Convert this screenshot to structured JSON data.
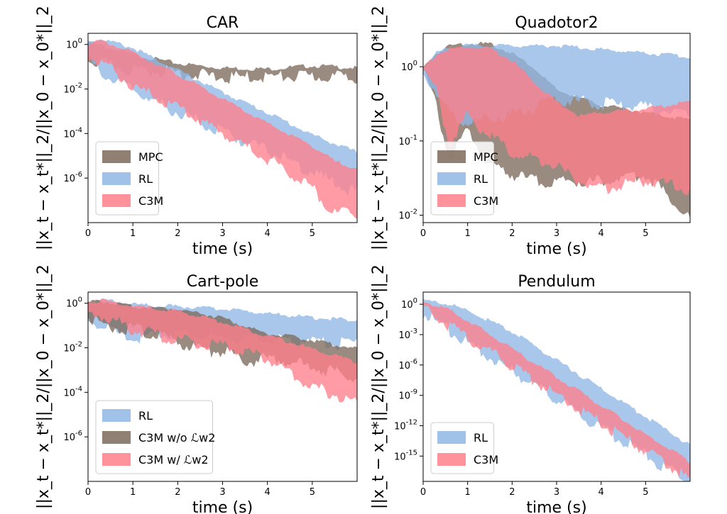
{
  "colors": {
    "MPC": "#7d6a5c",
    "RL": "#8fb7e4",
    "C3M": "#ff7f8a"
  },
  "chart_data": [
    {
      "type": "area",
      "title": "CAR",
      "xlabel": "time (s)",
      "ylabel": "||x_t − x_t*||_2/||x_0 − x_0*||_2",
      "yscale": "log",
      "xlim": [
        0,
        6
      ],
      "ylim_log10": [
        -8,
        0.5
      ],
      "x_ticks": [
        "0",
        "1",
        "2",
        "3",
        "4",
        "5"
      ],
      "y_ticks": [
        {
          "exp": 0,
          "label": "10^0"
        },
        {
          "exp": -2,
          "label": "10^-2"
        },
        {
          "exp": -4,
          "label": "10^-4"
        },
        {
          "exp": -6,
          "label": "10^-6"
        }
      ],
      "legend": {
        "position": "lower left",
        "entries": [
          "MPC",
          "RL",
          "C3M"
        ]
      },
      "series": [
        {
          "name": "MPC",
          "x": [
            0,
            0.3,
            1,
            2,
            3,
            4,
            5,
            6
          ],
          "lower_log10": [
            -0.5,
            -0.7,
            -1.0,
            -1.1,
            -1.35,
            -1.3,
            -1.3,
            -1.3
          ],
          "upper_log10": [
            0.1,
            0.0,
            -0.4,
            -0.8,
            -1.0,
            -1.05,
            -0.9,
            -1.0
          ]
        },
        {
          "name": "RL",
          "x": [
            0,
            0.3,
            1,
            2,
            3,
            4,
            5,
            6
          ],
          "lower_log10": [
            -0.5,
            -1.2,
            -1.9,
            -2.9,
            -3.8,
            -4.6,
            -5.6,
            -6.5
          ],
          "upper_log10": [
            0.2,
            0.3,
            -0.1,
            -1.1,
            -2.1,
            -3.0,
            -4.0,
            -4.8
          ]
        },
        {
          "name": "C3M",
          "x": [
            0,
            0.3,
            1,
            2,
            3,
            4,
            5,
            5.5,
            6
          ],
          "lower_log10": [
            -0.4,
            -0.7,
            -1.7,
            -2.7,
            -3.8,
            -5.0,
            -6.3,
            -7.5,
            -7.4
          ],
          "upper_log10": [
            0.1,
            0.2,
            -0.3,
            -1.3,
            -2.4,
            -3.5,
            -4.5,
            -5.2,
            -5.5
          ]
        }
      ]
    },
    {
      "type": "area",
      "title": "Quadotor2",
      "xlabel": "time (s)",
      "ylabel": "||x_t − x_t*||_2/||x_0 − x_0*||_2",
      "yscale": "log",
      "xlim": [
        0,
        6
      ],
      "ylim_log10": [
        -2.1,
        0.45
      ],
      "x_ticks": [
        "0",
        "1",
        "2",
        "3",
        "4",
        "5"
      ],
      "y_ticks": [
        {
          "exp": 0,
          "label": "10^0"
        },
        {
          "exp": -1,
          "label": "10^-1"
        },
        {
          "exp": -2,
          "label": "10^-2"
        }
      ],
      "legend": {
        "position": "lower left",
        "entries": [
          "MPC",
          "RL",
          "C3M"
        ]
      },
      "series": [
        {
          "name": "MPC",
          "x": [
            0,
            0.3,
            0.6,
            1,
            1.5,
            2,
            2.5,
            3,
            4,
            5,
            6
          ],
          "lower_log10": [
            0,
            -0.5,
            -1.2,
            -0.8,
            -1.3,
            -1.4,
            -1.5,
            -1.5,
            -1.5,
            -1.4,
            -2.0
          ],
          "upper_log10": [
            0,
            0.2,
            0.3,
            0.33,
            0.32,
            0.2,
            0.0,
            -0.3,
            -0.5,
            -0.6,
            -0.7
          ]
        },
        {
          "name": "RL",
          "x": [
            0,
            0.3,
            0.6,
            1,
            2,
            3,
            4,
            5,
            6
          ],
          "lower_log10": [
            0,
            -0.3,
            -0.6,
            -0.7,
            -0.6,
            -0.4,
            -0.45,
            -0.5,
            -0.6
          ],
          "upper_log10": [
            0,
            0.2,
            0.28,
            0.3,
            0.3,
            0.3,
            0.25,
            0.2,
            0.15
          ]
        },
        {
          "name": "C3M",
          "x": [
            0,
            0.3,
            0.6,
            1,
            1.5,
            2,
            2.5,
            3,
            3.5,
            4,
            5,
            6
          ],
          "lower_log10": [
            0,
            -0.3,
            -1.0,
            -0.6,
            -0.9,
            -1.1,
            -1.2,
            -1.3,
            -1.5,
            -1.6,
            -1.5,
            -1.6
          ],
          "upper_log10": [
            0,
            0.18,
            0.25,
            0.28,
            0.25,
            0.1,
            -0.2,
            -0.45,
            -0.65,
            -0.6,
            -0.55,
            -0.45
          ]
        }
      ]
    },
    {
      "type": "area",
      "title": "Cart-pole",
      "xlabel": "time (s)",
      "ylabel": "||x_t − x_t*||_2/||x_0 − x_0*||_2",
      "yscale": "log",
      "xlim": [
        0,
        6
      ],
      "ylim_log10": [
        -8,
        0.5
      ],
      "x_ticks": [
        "0",
        "1",
        "2",
        "3",
        "4",
        "5"
      ],
      "y_ticks": [
        {
          "exp": 0,
          "label": "10^0"
        },
        {
          "exp": -2,
          "label": "10^-2"
        },
        {
          "exp": -4,
          "label": "10^-4"
        },
        {
          "exp": -6,
          "label": "10^-6"
        }
      ],
      "legend": {
        "position": "lower left",
        "entries": [
          "RL",
          "C3M w/o ℒw2",
          "C3M w/ ℒw2"
        ]
      },
      "series": [
        {
          "name": "RL",
          "x": [
            0,
            0.3,
            0.7,
            1,
            2,
            3,
            4,
            5,
            6
          ],
          "lower_log10": [
            -0.7,
            -0.8,
            -1.3,
            -1.4,
            -1.2,
            -1.4,
            -1.4,
            -1.6,
            -1.7
          ],
          "upper_log10": [
            0.1,
            0.2,
            0.1,
            0.0,
            -0.1,
            -0.2,
            -0.4,
            -0.6,
            -0.7
          ]
        },
        {
          "name": "C3M w/o ℒw2",
          "x": [
            0,
            0.3,
            1,
            2,
            2.5,
            3,
            3.5,
            4,
            5,
            6
          ],
          "lower_log10": [
            -0.4,
            -0.9,
            -1.0,
            -1.6,
            -2.0,
            -2.0,
            -2.5,
            -2.3,
            -2.7,
            -3.2
          ],
          "upper_log10": [
            0.1,
            0.15,
            -0.1,
            -0.2,
            -0.4,
            -0.6,
            -1.0,
            -1.3,
            -1.6,
            -2.0
          ]
        },
        {
          "name": "C3M w/ ℒw2",
          "x": [
            0,
            0.3,
            1,
            2,
            3,
            4,
            5,
            6
          ],
          "lower_log10": [
            -0.3,
            -0.4,
            -1.0,
            -1.5,
            -1.8,
            -2.3,
            -3.6,
            -4.3
          ],
          "upper_log10": [
            0.1,
            0.2,
            -0.1,
            -0.3,
            -0.8,
            -1.4,
            -2.0,
            -2.6
          ]
        }
      ]
    },
    {
      "type": "area",
      "title": "Pendulum",
      "xlabel": "time (s)",
      "ylabel": "||x_t − x_t*||_2/||x_0 − x_0*||_2",
      "yscale": "log",
      "xlim": [
        0,
        6
      ],
      "ylim_log10": [
        -17.5,
        1.2
      ],
      "x_ticks": [
        "0",
        "1",
        "2",
        "3",
        "4",
        "5"
      ],
      "y_ticks": [
        {
          "exp": 0,
          "label": "10^0"
        },
        {
          "exp": -3,
          "label": "10^-3"
        },
        {
          "exp": -6,
          "label": "10^-6"
        },
        {
          "exp": -9,
          "label": "10^-9"
        },
        {
          "exp": -12,
          "label": "10^-12"
        },
        {
          "exp": -15,
          "label": "10^-15"
        }
      ],
      "legend": {
        "position": "lower left",
        "entries": [
          "RL",
          "C3M"
        ]
      },
      "series": [
        {
          "name": "RL",
          "x": [
            0,
            0.5,
            1,
            2,
            3,
            4,
            5,
            6
          ],
          "lower_log10": [
            -0.5,
            -2.0,
            -3.5,
            -6.3,
            -9.1,
            -11.9,
            -14.6,
            -17.3
          ],
          "upper_log10": [
            0.5,
            0.2,
            -0.5,
            -2.6,
            -5.4,
            -8.2,
            -11.0,
            -13.8
          ]
        },
        {
          "name": "C3M",
          "x": [
            0,
            0.5,
            1,
            2,
            3,
            4,
            5,
            6
          ],
          "lower_log10": [
            0.0,
            -1.5,
            -3.0,
            -5.8,
            -8.6,
            -11.4,
            -14.2,
            -17.0
          ],
          "upper_log10": [
            0.4,
            -0.3,
            -1.5,
            -4.3,
            -7.1,
            -9.9,
            -12.7,
            -15.5
          ]
        }
      ]
    }
  ]
}
